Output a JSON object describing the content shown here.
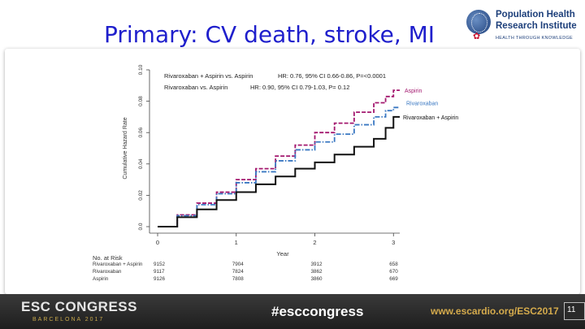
{
  "slide": {
    "title": "Primary: CV death, stroke, MI",
    "page_number": "11"
  },
  "logo": {
    "line1": "Population Health",
    "line2": "Research Institute",
    "tagline": "HEALTH THROUGH KNOWLEDGE"
  },
  "footer": {
    "congress": "ESC CONGRESS",
    "city": "BARCELONA 2017",
    "hashtag": "#esccongress",
    "url": "www.escardio.org/ESC2017"
  },
  "chart_data": {
    "type": "line",
    "xlabel": "Year",
    "ylabel": "Cumulative Hazard Rate",
    "xlim": [
      0,
      3.08
    ],
    "ylim": [
      0,
      0.1
    ],
    "x_ticks": [
      0,
      1,
      2,
      3
    ],
    "y_ticks": [
      "0.0",
      "0.02",
      "0.04",
      "0.06",
      "0.08",
      "0.10"
    ],
    "annotations": [
      {
        "label": "Rivaroxaban + Aspirin vs. Aspirin",
        "stats": "HR: 0.76, 95% CI 0.66-0.86,  P=<0.0001"
      },
      {
        "label": "Rivaroxaban vs. Aspirin",
        "stats": "HR: 0.90, 95% CI 0.79-1.03,  P= 0.12"
      }
    ],
    "series": [
      {
        "name": "Aspirin",
        "color": "#a3186f",
        "dash": "dash",
        "x": [
          0,
          0.25,
          0.5,
          0.75,
          1.0,
          1.25,
          1.5,
          1.75,
          2.0,
          2.25,
          2.5,
          2.75,
          2.9,
          3.0,
          3.08
        ],
        "y": [
          0,
          0.0075,
          0.015,
          0.022,
          0.03,
          0.037,
          0.045,
          0.052,
          0.06,
          0.066,
          0.073,
          0.079,
          0.083,
          0.087,
          0.087
        ]
      },
      {
        "name": "Rivaroxaban",
        "color": "#3a78c2",
        "dash": "dashdot",
        "x": [
          0,
          0.25,
          0.5,
          0.75,
          1.0,
          1.25,
          1.5,
          1.75,
          2.0,
          2.25,
          2.5,
          2.75,
          2.9,
          3.0,
          3.08
        ],
        "y": [
          0,
          0.007,
          0.014,
          0.021,
          0.028,
          0.035,
          0.042,
          0.049,
          0.054,
          0.059,
          0.065,
          0.07,
          0.074,
          0.076,
          0.076
        ]
      },
      {
        "name": "Rivaroxaban + Aspirin",
        "color": "#111111",
        "dash": "solid",
        "x": [
          0,
          0.25,
          0.5,
          0.75,
          1.0,
          1.25,
          1.5,
          1.75,
          2.0,
          2.25,
          2.5,
          2.75,
          2.9,
          3.0,
          3.08
        ],
        "y": [
          0,
          0.006,
          0.011,
          0.017,
          0.022,
          0.027,
          0.032,
          0.037,
          0.041,
          0.046,
          0.051,
          0.056,
          0.063,
          0.07,
          0.07
        ]
      }
    ],
    "risk_table": {
      "header": "No. at Risk",
      "times": [
        0,
        1,
        2,
        3
      ],
      "rows": [
        {
          "label": "Rivaroxaban + Aspirin",
          "values": [
            "9152",
            "7904",
            "3912",
            "658"
          ]
        },
        {
          "label": "Rivaroxaban",
          "values": [
            "9117",
            "7824",
            "3862",
            "670"
          ]
        },
        {
          "label": "Aspirin",
          "values": [
            "9126",
            "7808",
            "3860",
            "669"
          ]
        }
      ]
    }
  }
}
